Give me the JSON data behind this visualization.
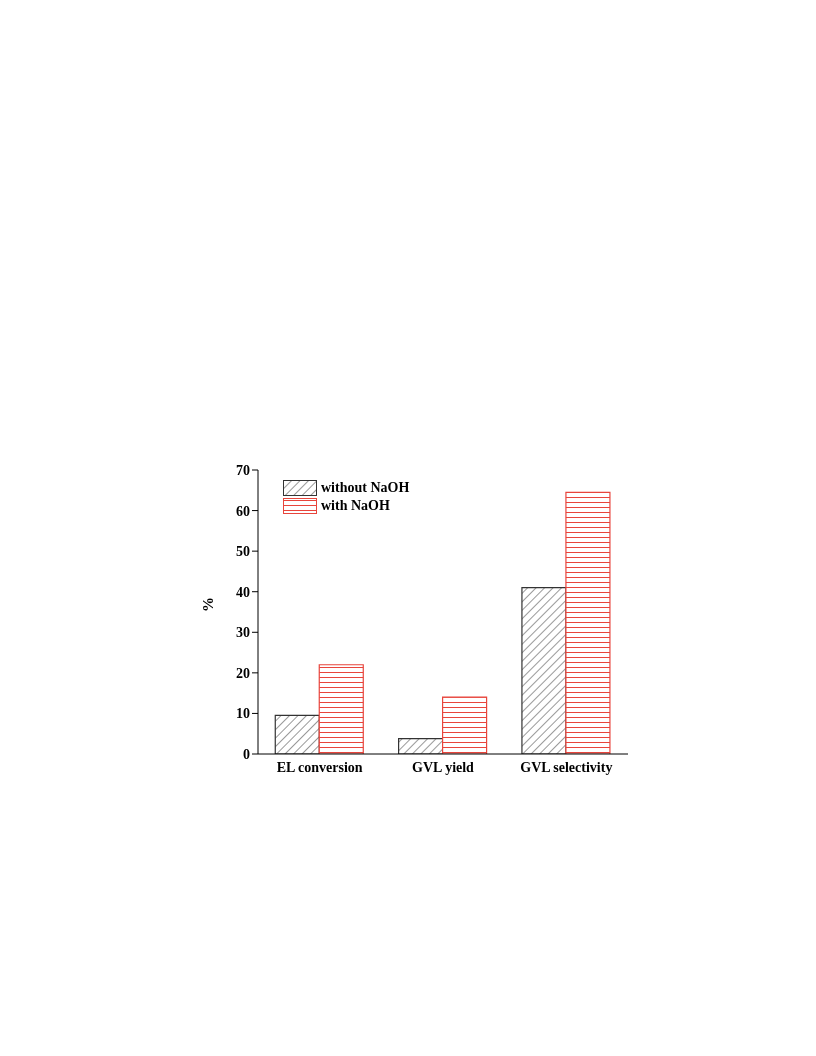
{
  "chart_data": {
    "type": "bar",
    "ylabel": "%",
    "categories": [
      "EL conversion",
      "GVL yield",
      "GVL selectivity"
    ],
    "series": [
      {
        "name": "without NaOH",
        "color": "#333333",
        "values": [
          9.5,
          3.8,
          41.0
        ]
      },
      {
        "name": "with NaOH",
        "color": "#e8453c",
        "values": [
          22.0,
          14.0,
          64.5
        ]
      }
    ],
    "ylim": [
      0,
      70
    ],
    "yticks": [
      0,
      10,
      20,
      30,
      40,
      50,
      60,
      70
    ],
    "grid": false,
    "legend": "top left"
  }
}
